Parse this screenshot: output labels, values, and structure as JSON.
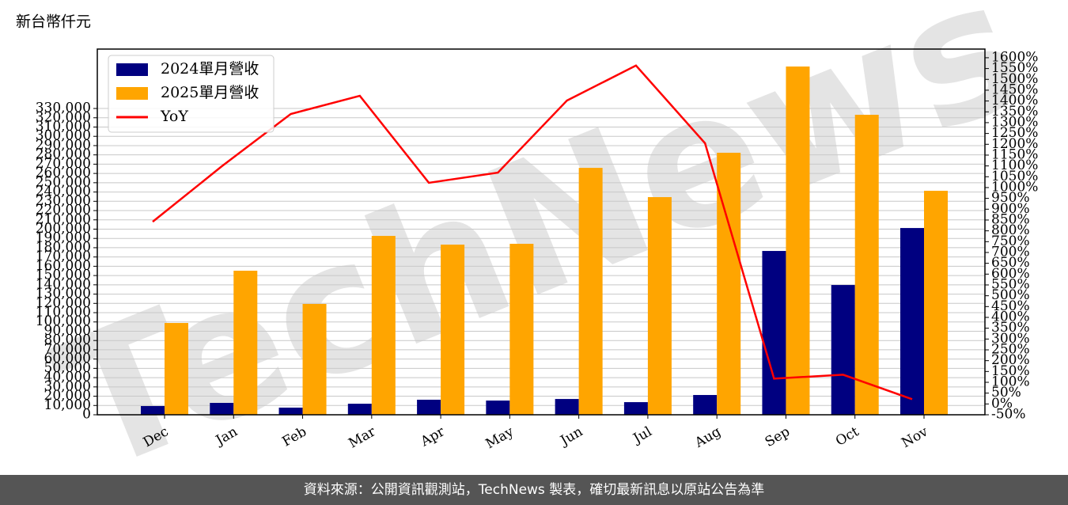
{
  "chart_data": {
    "type": "bar-line",
    "title": "新台幣仟元",
    "source": "資料來源：公開資訊觀測站，TechNews 製表，確切最新訊息以原站公告為準",
    "watermark": "TechNews",
    "categories": [
      "Dec",
      "Jan",
      "Feb",
      "Mar",
      "Apr",
      "May",
      "Jun",
      "Jul",
      "Aug",
      "Sep",
      "Oct",
      "Nov"
    ],
    "series": [
      {
        "name": "2024單月營收",
        "type": "bar",
        "color": "#000080",
        "values": [
          9400,
          12800,
          7700,
          11900,
          16200,
          15300,
          17000,
          13600,
          21300,
          176500,
          139800,
          201200
        ]
      },
      {
        "name": "2025單月營收",
        "type": "bar",
        "color": "#ffa500",
        "values": [
          98900,
          155200,
          119400,
          192700,
          183300,
          184200,
          266000,
          234500,
          282300,
          375200,
          323200,
          241300
        ]
      },
      {
        "name": "YoY",
        "type": "line",
        "axis": "y2",
        "color": "#ff0000",
        "values": [
          842,
          1098,
          1340,
          1424,
          1022,
          1069,
          1402,
          1564,
          1205,
          117,
          135,
          22
        ]
      }
    ],
    "ylim": [
      0,
      394000
    ],
    "yticks": [
      0,
      {
        "value": 10000,
        "label": "10,000"
      },
      {
        "value": 20000,
        "label": "20,000"
      },
      {
        "value": 30000,
        "label": "30,000"
      },
      {
        "value": 40000,
        "label": "40,000"
      },
      {
        "value": 50000,
        "label": "50,000"
      },
      {
        "value": 60000,
        "label": "60,000"
      },
      {
        "value": 70000,
        "label": "70,000"
      },
      {
        "value": 80000,
        "label": "80,000"
      },
      {
        "value": 90000,
        "label": "90,000"
      },
      {
        "value": 100000,
        "label": "100,000"
      },
      {
        "value": 110000,
        "label": "110,000"
      },
      {
        "value": 120000,
        "label": "120,000"
      },
      {
        "value": 130000,
        "label": "130,000"
      },
      {
        "value": 140000,
        "label": "140,000"
      },
      {
        "value": 150000,
        "label": "150,000"
      },
      {
        "value": 160000,
        "label": "160,000"
      },
      {
        "value": 170000,
        "label": "170,000"
      },
      {
        "value": 180000,
        "label": "180,000"
      },
      {
        "value": 190000,
        "label": "190,000"
      },
      {
        "value": 200000,
        "label": "200,000"
      },
      {
        "value": 210000,
        "label": "210,000"
      },
      {
        "value": 220000,
        "label": "220,000"
      },
      {
        "value": 230000,
        "label": "230,000"
      },
      {
        "value": 240000,
        "label": "240,000"
      },
      {
        "value": 250000,
        "label": "250,000"
      },
      {
        "value": 260000,
        "label": "260,000"
      },
      {
        "value": 270000,
        "label": "270,000"
      },
      {
        "value": 280000,
        "label": "280,000"
      },
      {
        "value": 290000,
        "label": "290,000"
      },
      {
        "value": 300000,
        "label": "300,000"
      },
      {
        "value": 310000,
        "label": "310,000"
      },
      {
        "value": 320000,
        "label": "320,000"
      },
      {
        "value": 330000,
        "label": "330,000"
      }
    ],
    "y2lim": [
      -50,
      1640
    ],
    "y2ticks": [
      {
        "value": -50,
        "label": "-50%"
      },
      {
        "value": 0,
        "label": "0%"
      },
      {
        "value": 50,
        "label": "50%"
      },
      {
        "value": 100,
        "label": "100%"
      },
      {
        "value": 150,
        "label": "150%"
      },
      {
        "value": 200,
        "label": "200%"
      },
      {
        "value": 250,
        "label": "250%"
      },
      {
        "value": 300,
        "label": "300%"
      },
      {
        "value": 350,
        "label": "350%"
      },
      {
        "value": 400,
        "label": "400%"
      },
      {
        "value": 450,
        "label": "450%"
      },
      {
        "value": 500,
        "label": "500%"
      },
      {
        "value": 550,
        "label": "550%"
      },
      {
        "value": 600,
        "label": "600%"
      },
      {
        "value": 650,
        "label": "650%"
      },
      {
        "value": 700,
        "label": "700%"
      },
      {
        "value": 750,
        "label": "750%"
      },
      {
        "value": 800,
        "label": "800%"
      },
      {
        "value": 850,
        "label": "850%"
      },
      {
        "value": 900,
        "label": "900%"
      },
      {
        "value": 950,
        "label": "950%"
      },
      {
        "value": 1000,
        "label": "1000%"
      },
      {
        "value": 1050,
        "label": "1050%"
      },
      {
        "value": 1100,
        "label": "1100%"
      },
      {
        "value": 1150,
        "label": "1150%"
      },
      {
        "value": 1200,
        "label": "1200%"
      },
      {
        "value": 1250,
        "label": "1250%"
      },
      {
        "value": 1300,
        "label": "1300%"
      },
      {
        "value": 1350,
        "label": "1350%"
      },
      {
        "value": 1400,
        "label": "1400%"
      },
      {
        "value": 1450,
        "label": "1450%"
      },
      {
        "value": 1500,
        "label": "1500%"
      },
      {
        "value": 1550,
        "label": "1550%"
      },
      {
        "value": 1600,
        "label": "1600%"
      }
    ],
    "grid": true,
    "legend": "upper-left"
  }
}
